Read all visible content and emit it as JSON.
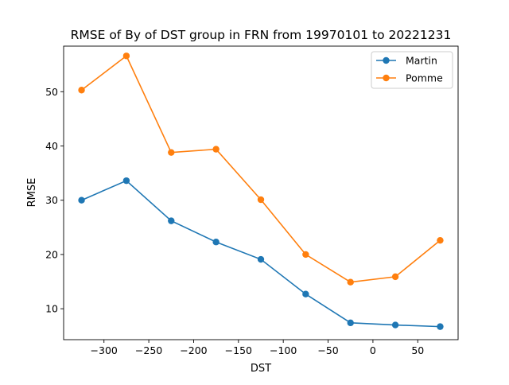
{
  "chart_data": {
    "type": "line",
    "title": "RMSE of By of DST group in FRN from 19970101 to 20221231",
    "xlabel": "DST",
    "ylabel": "RMSE",
    "xlim": [
      -345,
      95
    ],
    "ylim": [
      4.3,
      58.4
    ],
    "xticks": [
      -300,
      -250,
      -200,
      -150,
      -100,
      -50,
      0,
      50
    ],
    "xtick_labels": [
      "−300",
      "−250",
      "−200",
      "−150",
      "−100",
      "−50",
      "0",
      "50"
    ],
    "yticks": [
      10,
      20,
      30,
      40,
      50
    ],
    "ytick_labels": [
      "10",
      "20",
      "30",
      "40",
      "50"
    ],
    "grid": false,
    "legend_position": "top-right",
    "x": [
      -325,
      -275,
      -225,
      -175,
      -125,
      -75,
      -25,
      25,
      75
    ],
    "series": [
      {
        "name": "Martin",
        "color": "#1f77b4",
        "values": [
          30.0,
          33.6,
          26.2,
          22.3,
          19.1,
          12.7,
          7.4,
          7.0,
          6.7
        ]
      },
      {
        "name": "Pomme",
        "color": "#ff7f0e",
        "values": [
          50.3,
          56.6,
          38.8,
          39.4,
          30.1,
          20.0,
          14.9,
          15.9,
          22.6
        ]
      }
    ]
  }
}
